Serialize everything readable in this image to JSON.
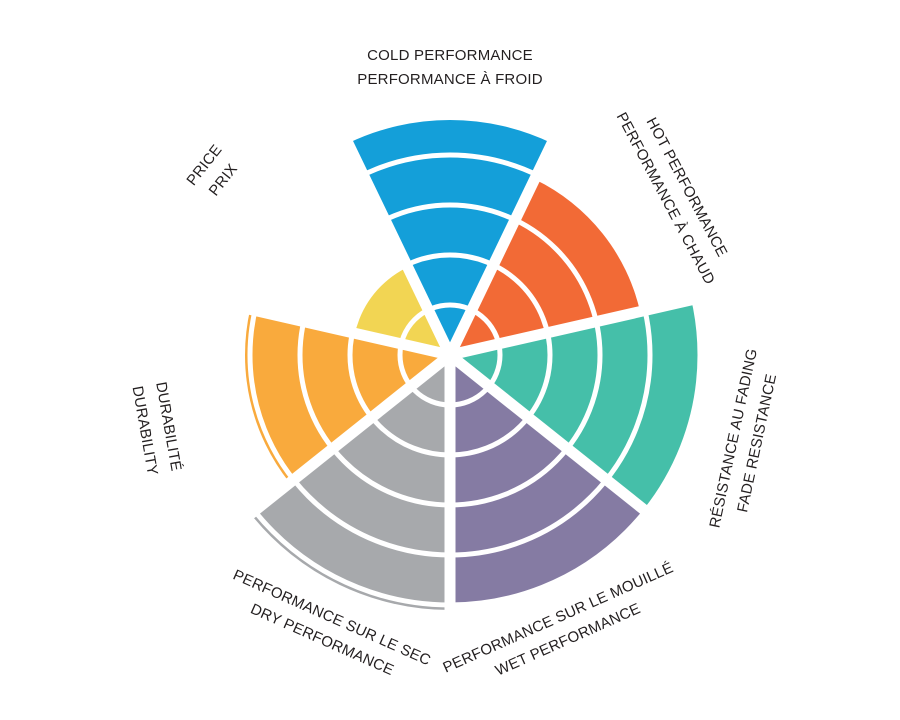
{
  "chart_data": {
    "type": "polar-area",
    "levels": 5,
    "categories": [
      {
        "en": "COLD PERFORMANCE",
        "fr": "PERFORMANCE À FROID",
        "value": 4.7,
        "color": "#149fd9"
      },
      {
        "en": "HOT PERFORMANCE",
        "fr": "PERFORMANCE À CHAUD",
        "value": 3.9,
        "color": "#f26a36"
      },
      {
        "en": "FADE RESISTANCE",
        "fr": "RÉSISTANCE AU FADING",
        "value": 5,
        "color": "#45bfa9"
      },
      {
        "en": "WET PERFORMANCE",
        "fr": "PERFORMANCE SUR LE MOUILLÉ",
        "value": 5,
        "color": "#857ba3"
      },
      {
        "en": "DRY PERFORMANCE",
        "fr": "PERFORMANCE SUR LE SEC",
        "value": 5.1,
        "color": "#a7a9ac"
      },
      {
        "en": "DURABILITY",
        "fr": "DURABILITÉ",
        "value": 4.1,
        "color": "#f9aa3d"
      },
      {
        "en": "PRICE",
        "fr": "PRIX",
        "value": 2,
        "color": "#f2d553"
      }
    ]
  }
}
